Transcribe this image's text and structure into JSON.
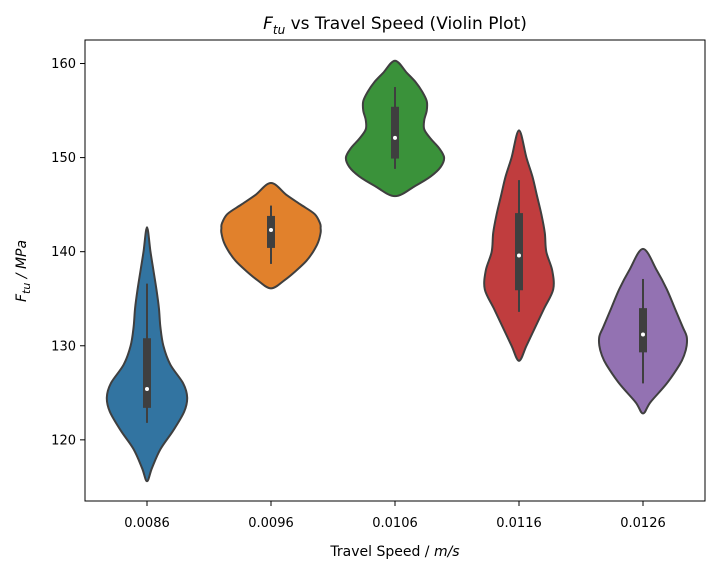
{
  "chart_data": {
    "type": "violin",
    "title_main": "F",
    "title_sub": "tu",
    "title_rest": " vs Travel Speed (Violin Plot)",
    "xlabel_main": "Travel Speed / ",
    "xlabel_unit": "m/s",
    "ylabel_main": "F",
    "ylabel_sub": "tu",
    "ylabel_unit": " / MPa",
    "categories": [
      "0.0086",
      "0.0096",
      "0.0106",
      "0.0116",
      "0.0126"
    ],
    "ylim": [
      113.5,
      162.5
    ],
    "yticks": [
      120,
      130,
      140,
      150,
      160
    ],
    "grid": false,
    "series": [
      {
        "category": "0.0086",
        "color": "#3274a1",
        "min": 121.8,
        "q1": 123.4,
        "median": 125.4,
        "q3": 130.8,
        "max": 136.6,
        "kde_y": [
          115.6,
          117,
          119,
          121,
          123,
          124.5,
          126,
          128,
          130,
          132,
          134,
          136,
          138,
          140,
          142.6
        ],
        "kde_width": [
          0,
          0.1,
          0.27,
          0.53,
          0.75,
          0.81,
          0.73,
          0.47,
          0.33,
          0.27,
          0.24,
          0.19,
          0.13,
          0.07,
          0
        ]
      },
      {
        "category": "0.0096",
        "color": "#e1812c",
        "min": 138.7,
        "q1": 140.4,
        "median": 142.3,
        "q3": 143.8,
        "max": 144.9,
        "kde_y": [
          136.1,
          137,
          138,
          139,
          140,
          141,
          142,
          142.5,
          143,
          144,
          145,
          146,
          147.3
        ],
        "kde_width": [
          0,
          0.28,
          0.51,
          0.71,
          0.85,
          0.95,
          1.0,
          1.0,
          0.99,
          0.88,
          0.6,
          0.32,
          0
        ]
      },
      {
        "category": "0.0106",
        "color": "#3a923a",
        "min": 148.8,
        "q1": 149.9,
        "median": 152.1,
        "q3": 155.4,
        "max": 157.5,
        "kde_y": [
          145.9,
          147,
          148,
          149,
          150,
          151,
          152,
          153,
          154,
          155,
          156,
          157,
          158,
          159,
          160.3
        ],
        "kde_width": [
          0,
          0.41,
          0.72,
          0.92,
          0.99,
          0.89,
          0.72,
          0.59,
          0.59,
          0.64,
          0.64,
          0.55,
          0.42,
          0.24,
          0
        ]
      },
      {
        "category": "0.0116",
        "color": "#c03d3e",
        "min": 133.6,
        "q1": 135.9,
        "median": 139.6,
        "q3": 144.1,
        "max": 147.6,
        "kde_y": [
          128.4,
          130,
          132,
          134,
          136,
          138,
          140,
          142,
          144,
          146,
          148,
          150,
          152.9
        ],
        "kde_width": [
          0,
          0.15,
          0.33,
          0.51,
          0.69,
          0.67,
          0.55,
          0.52,
          0.45,
          0.36,
          0.27,
          0.15,
          0
        ]
      },
      {
        "category": "0.0126",
        "color": "#9372b2",
        "min": 126.0,
        "q1": 129.3,
        "median": 131.2,
        "q3": 134.0,
        "max": 137.1,
        "kde_y": [
          122.8,
          124,
          126,
          128,
          129,
          130,
          131,
          132,
          134,
          136,
          138,
          140.3
        ],
        "kde_width": [
          0,
          0.15,
          0.48,
          0.74,
          0.83,
          0.88,
          0.88,
          0.8,
          0.64,
          0.48,
          0.28,
          0
        ]
      }
    ]
  }
}
